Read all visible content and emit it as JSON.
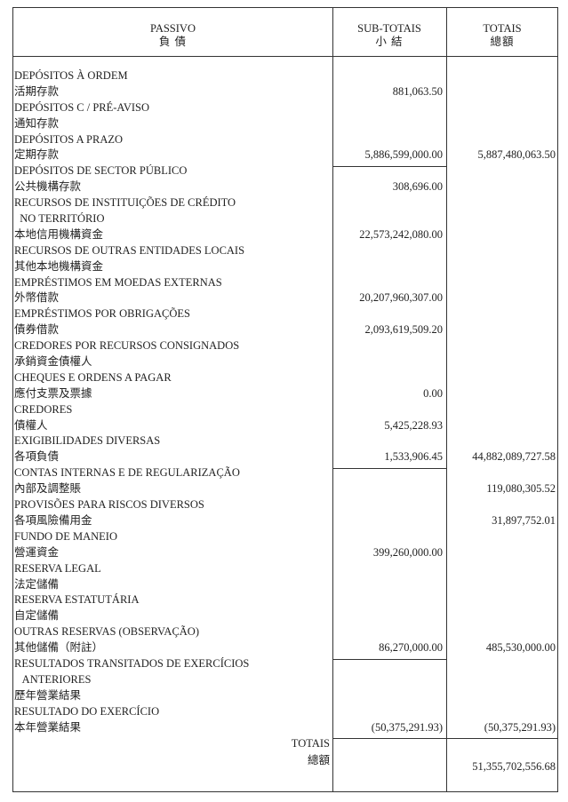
{
  "header": {
    "passivo": "PASSIVO",
    "passivo_zh": "負 債",
    "subtotais": "SUB-TOTAIS",
    "subtotais_zh": "小 結",
    "totais": "TOTAIS",
    "totais_zh": "總額"
  },
  "rows": [
    {
      "label": "DEPÓSITOS À ORDEM",
      "sub": "",
      "total": ""
    },
    {
      "label": "活期存款",
      "sub": "881,063.50",
      "total": ""
    },
    {
      "label": "DEPÓSITOS C / PRÉ-AVISO",
      "sub": "",
      "total": ""
    },
    {
      "label": "通知存款",
      "sub": "",
      "total": ""
    },
    {
      "label": "DEPÓSITOS A PRAZO",
      "sub": "",
      "total": ""
    },
    {
      "label": "定期存款",
      "sub": "5,886,599,000.00",
      "total": "5,887,480,063.50"
    },
    {
      "label": "DEPÓSITOS DE SECTOR PÚBLICO",
      "sub": "",
      "total": ""
    },
    {
      "label": "公共機構存款",
      "sub": "308,696.00",
      "total": ""
    },
    {
      "label": "RECURSOS DE INSTITUIÇÕES DE CRÉDITO",
      "sub": "",
      "total": ""
    },
    {
      "label": "  NO TERRITÓRIO",
      "sub": "",
      "total": ""
    },
    {
      "label": "本地信用機構資金",
      "sub": "22,573,242,080.00",
      "total": ""
    },
    {
      "label": "RECURSOS DE OUTRAS ENTIDADES LOCAIS",
      "sub": "",
      "total": ""
    },
    {
      "label": "其他本地機構資金",
      "sub": "",
      "total": ""
    },
    {
      "label": "EMPRÉSTIMOS EM MOEDAS EXTERNAS",
      "sub": "",
      "total": ""
    },
    {
      "label": "外幣借款",
      "sub": "20,207,960,307.00",
      "total": ""
    },
    {
      "label": "EMPRÉSTIMOS POR OBRIGAÇÕES",
      "sub": "",
      "total": ""
    },
    {
      "label": "債券借款",
      "sub": "2,093,619,509.20",
      "total": ""
    },
    {
      "label": "CREDORES POR RECURSOS CONSIGNADOS",
      "sub": "",
      "total": ""
    },
    {
      "label": "承銷資金債權人",
      "sub": "",
      "total": ""
    },
    {
      "label": "CHEQUES E ORDENS A PAGAR",
      "sub": "",
      "total": ""
    },
    {
      "label": "應付支票及票據",
      "sub": "0.00",
      "total": ""
    },
    {
      "label": "CREDORES",
      "sub": "",
      "total": ""
    },
    {
      "label": "債權人",
      "sub": "5,425,228.93",
      "total": ""
    },
    {
      "label": "EXIGIBILIDADES DIVERSAS",
      "sub": "",
      "total": ""
    },
    {
      "label": "各項負債",
      "sub": "1,533,906.45",
      "total": "44,882,089,727.58"
    },
    {
      "label": "CONTAS INTERNAS E DE REGULARIZAÇÃO",
      "sub": "",
      "total": ""
    },
    {
      "label": "內部及調整賬",
      "sub": "",
      "total": "119,080,305.52"
    },
    {
      "label": "PROVISÕES PARA RISCOS DIVERSOS",
      "sub": "",
      "total": ""
    },
    {
      "label": "各項風險備用金",
      "sub": "",
      "total": "31,897,752.01"
    },
    {
      "label": "FUNDO DE MANEIO",
      "sub": "",
      "total": ""
    },
    {
      "label": "營運資金",
      "sub": "399,260,000.00",
      "total": ""
    },
    {
      "label": "RESERVA LEGAL",
      "sub": "",
      "total": ""
    },
    {
      "label": "法定儲備",
      "sub": "",
      "total": ""
    },
    {
      "label": "RESERVA ESTATUTÁRIA",
      "sub": "",
      "total": ""
    },
    {
      "label": "自定儲備",
      "sub": "",
      "total": ""
    },
    {
      "label": "OUTRAS RESERVAS (OBSERVAÇÃO)",
      "sub": "",
      "total": ""
    },
    {
      "label": "其他儲備（附註）",
      "sub": "86,270,000.00",
      "total": "485,530,000.00"
    },
    {
      "label": "RESULTADOS TRANSITADOS DE EXERCÍCIOS",
      "sub": "",
      "total": ""
    },
    {
      "label": "   ANTERIORES",
      "sub": "",
      "total": ""
    },
    {
      "label": "歷年營業結果",
      "sub": "",
      "total": ""
    },
    {
      "label": "RESULTADO DO EXERCÍCIO",
      "sub": "",
      "total": ""
    },
    {
      "label": "本年營業結果",
      "sub": "(50,375,291.93)",
      "total": "(50,375,291.93)"
    }
  ],
  "grand_total": {
    "label": "TOTAIS",
    "label_zh": "總額",
    "value": "51,355,702,556.68"
  }
}
